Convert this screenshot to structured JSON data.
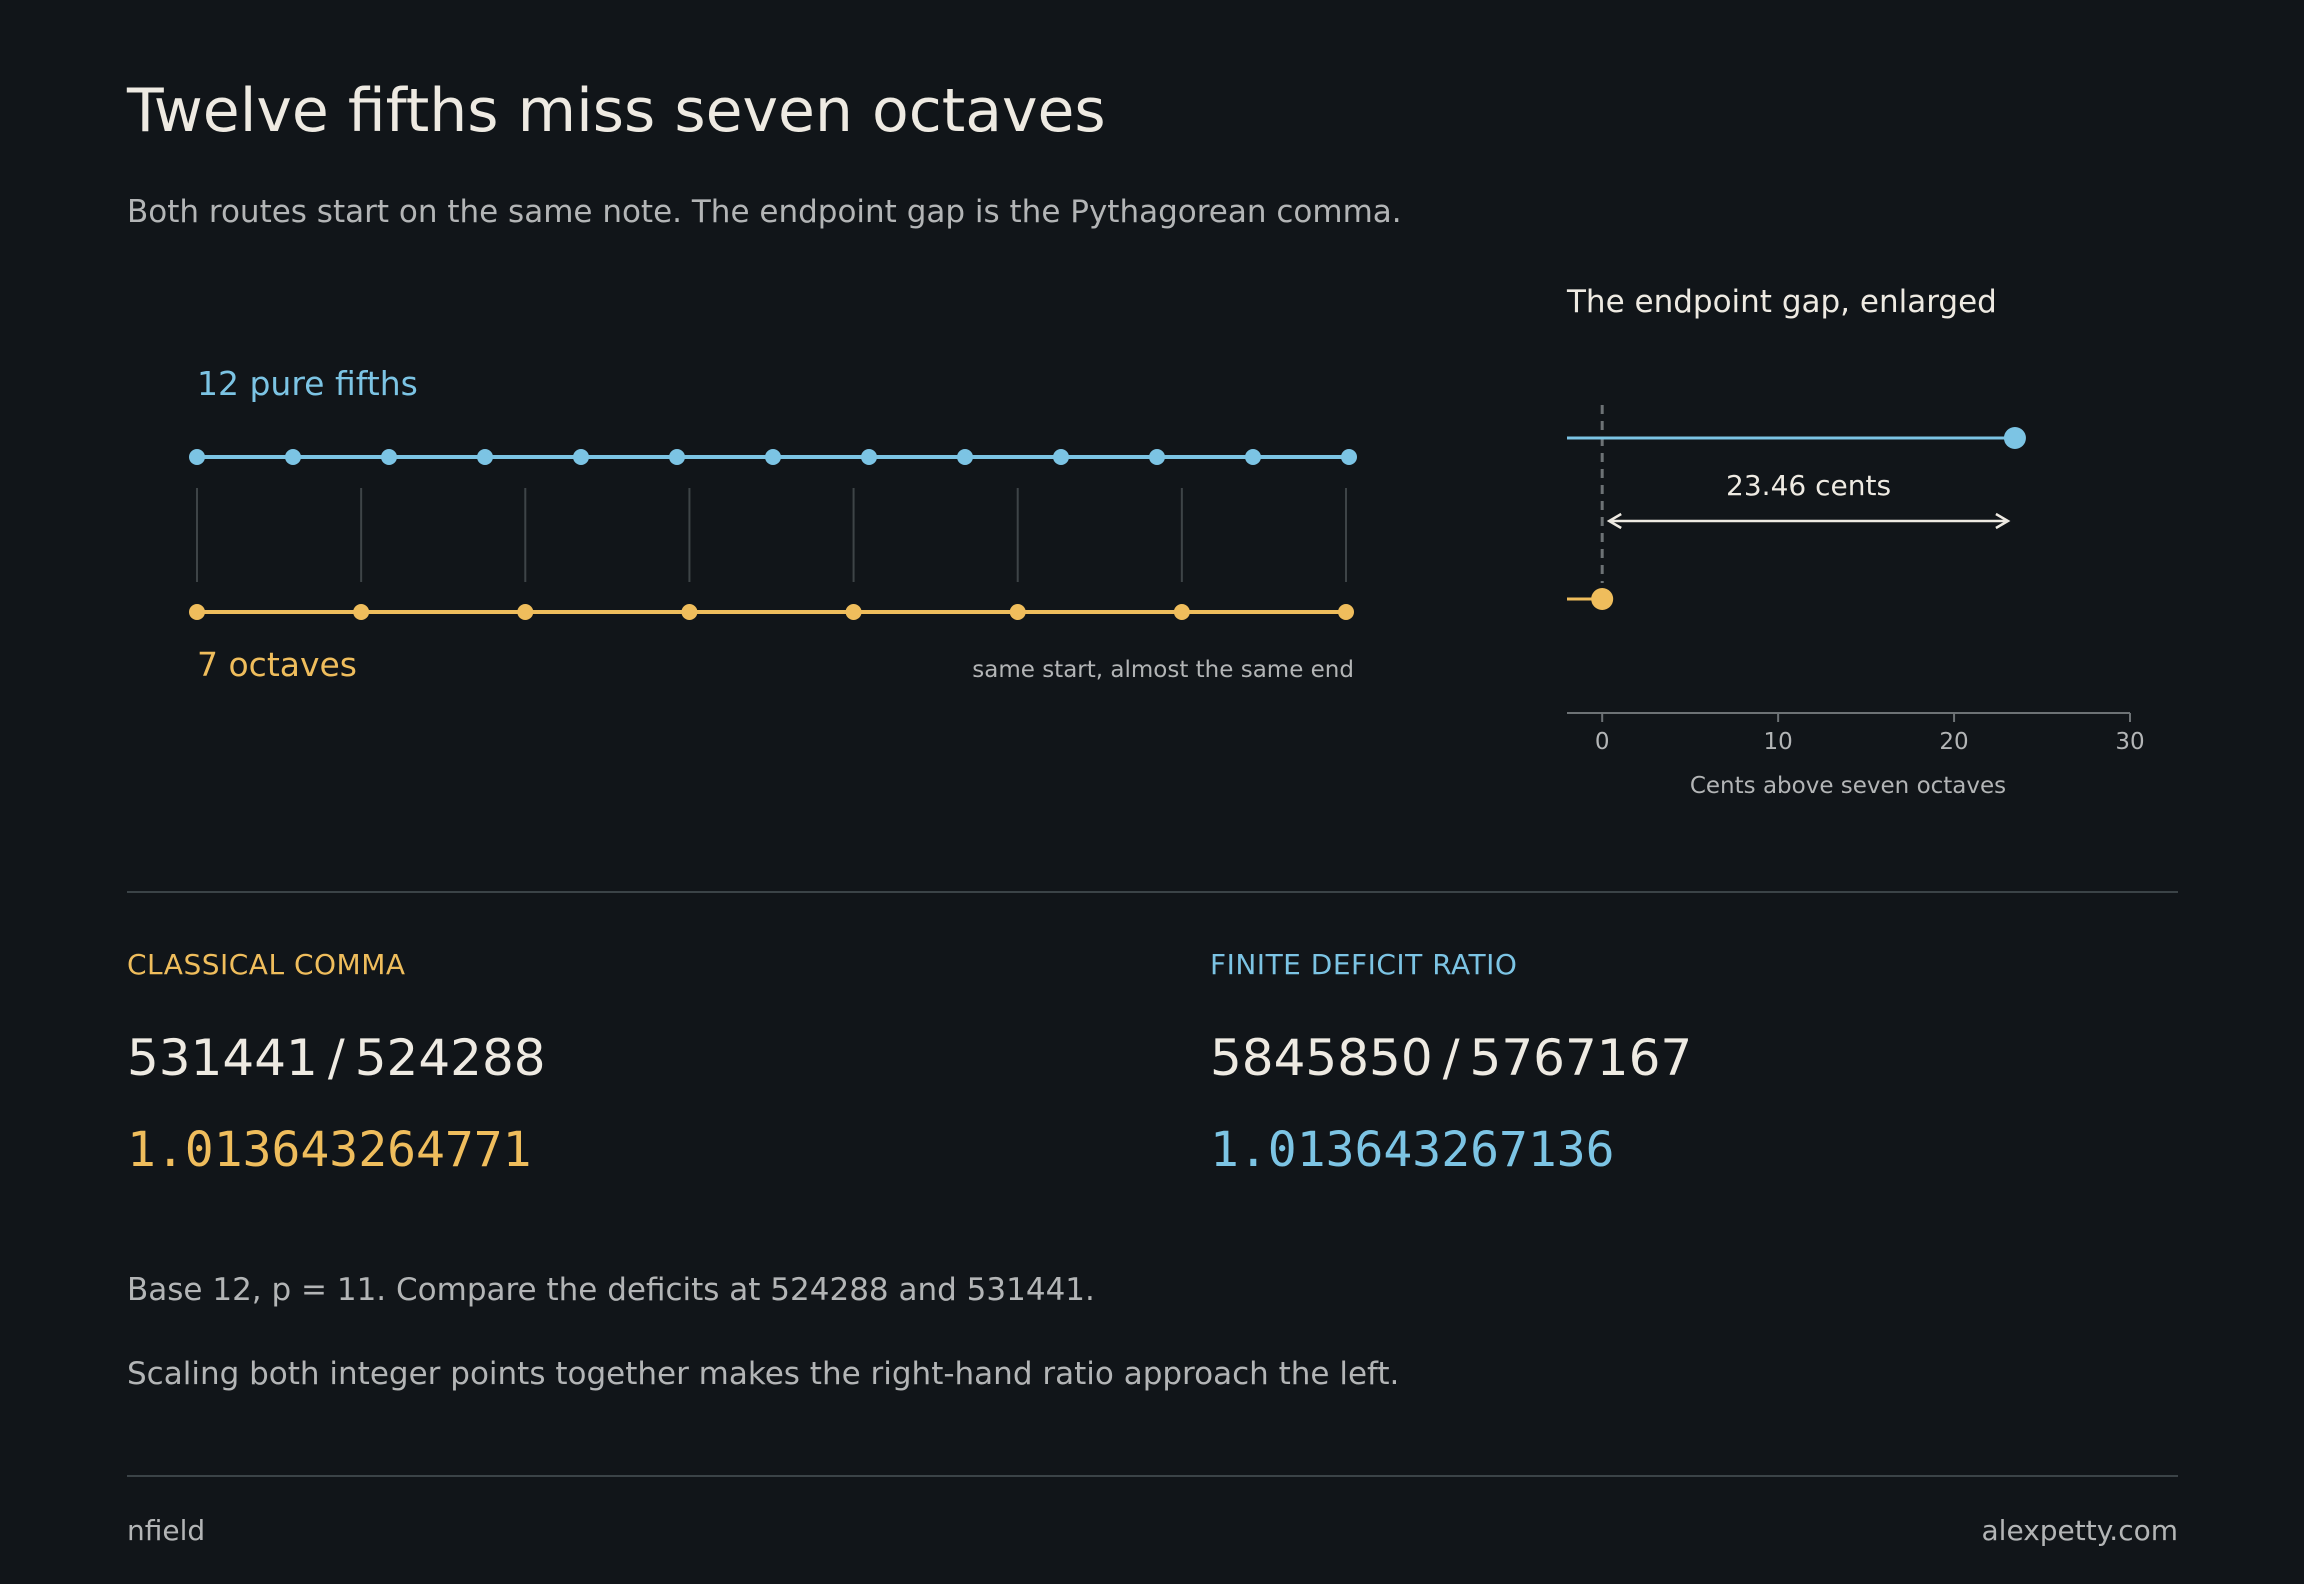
{
  "colors": {
    "background": "#111519",
    "fifths": "#7cc4e4",
    "octaves": "#efbd5c",
    "text": "#eeeae2",
    "muted": "#b3b5b6",
    "rule": "#3b4347"
  },
  "header": {
    "title": "Twelve fifths miss seven octaves",
    "subtitle": "Both routes start on the same note. The endpoint gap is the Pythagorean comma."
  },
  "routes": {
    "fifths_label": "12 pure fifths",
    "octaves_label": "7 octaves",
    "caption": "same start, almost the same end",
    "fifth_steps": 12,
    "octave_steps": 7
  },
  "gap_chart": {
    "title": "The endpoint gap, enlarged",
    "annotation": "23.46 cents",
    "xlabel": "Cents above seven octaves"
  },
  "chart_data": {
    "type": "scatter",
    "title": "The endpoint gap, enlarged",
    "xlabel": "Cents above seven octaves",
    "ylabel": "",
    "xlim": [
      -2,
      30
    ],
    "xticks": [
      0,
      10,
      20,
      30
    ],
    "series": [
      {
        "name": "12 pure fifths",
        "x": [
          23.46
        ],
        "color": "#7cc4e4"
      },
      {
        "name": "7 octaves",
        "x": [
          0
        ],
        "color": "#efbd5c"
      }
    ],
    "annotations": [
      "23.46 cents"
    ]
  },
  "left_panel": {
    "label": "CLASSICAL COMMA",
    "numerator": "531441",
    "slash": "/",
    "denominator": "524288",
    "decimal": "1.013643264771"
  },
  "right_panel": {
    "label": "FINITE DEFICIT RATIO",
    "numerator": "5845850",
    "slash": "/",
    "denominator": "5767167",
    "decimal": "1.013643267136"
  },
  "notes": {
    "line1": "Base 12, p = 11. Compare the deficits at 524288 and 531441.",
    "line2": "Scaling both integer points together makes the right-hand ratio approach the left."
  },
  "footer": {
    "left": "nfield",
    "right": "alexpetty.com"
  }
}
